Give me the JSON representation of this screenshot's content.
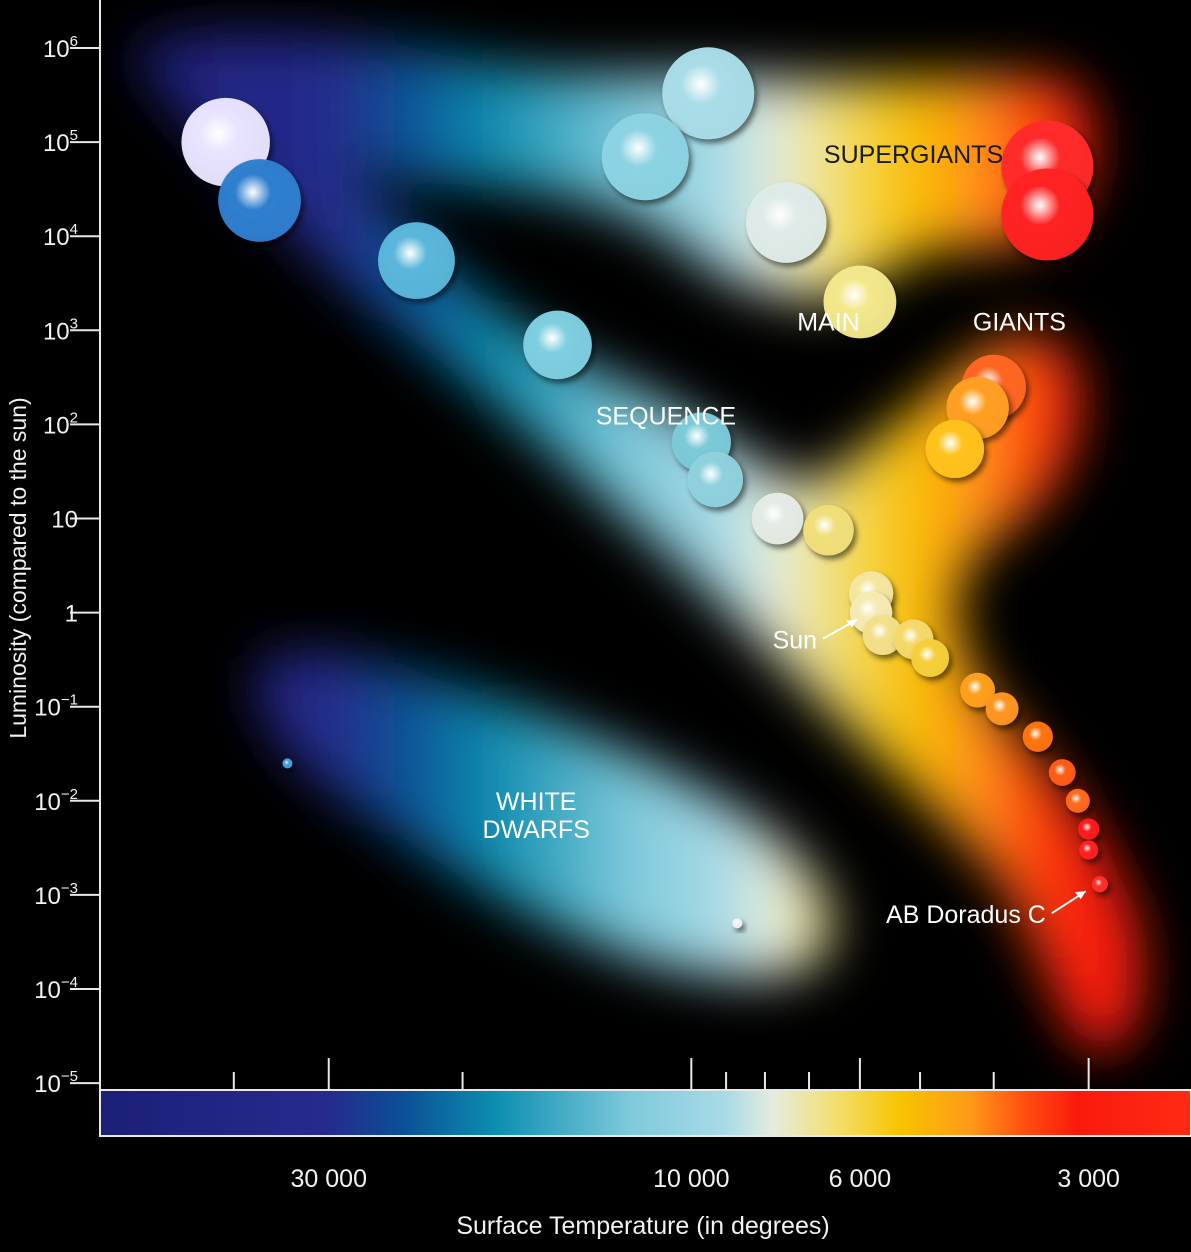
{
  "chart_data": {
    "type": "scatter",
    "title": "",
    "xlabel": "Surface Temperature (in degrees)",
    "ylabel": "Luminosity (compared to the sun)",
    "x_scale": "log, reversed",
    "y_scale": "log",
    "xlim": [
      60000,
      2200
    ],
    "ylim": [
      1e-05,
      1000000
    ],
    "grid": false,
    "legend": "none",
    "x_ticks": [
      {
        "value": 30000,
        "label": "30 000"
      },
      {
        "value": 10000,
        "label": "10 000"
      },
      {
        "value": 6000,
        "label": "6 000"
      },
      {
        "value": 3000,
        "label": "3 000"
      }
    ],
    "x_minor_ticks": [
      40000,
      20000,
      9000,
      8000,
      7000,
      5000,
      4000
    ],
    "y_ticks": [
      {
        "value": 1000000,
        "base": "10",
        "exp": "6"
      },
      {
        "value": 100000,
        "base": "10",
        "exp": "5"
      },
      {
        "value": 10000,
        "base": "10",
        "exp": "4"
      },
      {
        "value": 1000,
        "base": "10",
        "exp": "3"
      },
      {
        "value": 100,
        "base": "10",
        "exp": "2"
      },
      {
        "value": 10,
        "base": "10",
        "exp": ""
      },
      {
        "value": 1,
        "base": "1",
        "exp": ""
      },
      {
        "value": 0.1,
        "base": "10",
        "exp": "−1"
      },
      {
        "value": 0.01,
        "base": "10",
        "exp": "−2"
      },
      {
        "value": 0.001,
        "base": "10",
        "exp": "−3"
      },
      {
        "value": 0.0001,
        "base": "10",
        "exp": "−4"
      },
      {
        "value": 1e-05,
        "base": "10",
        "exp": "−5"
      }
    ],
    "colorbar": {
      "stops": [
        {
          "t": 60000,
          "color": "#1c1f78"
        },
        {
          "t": 30000,
          "color": "#262a8c"
        },
        {
          "t": 24000,
          "color": "#0b4f95"
        },
        {
          "t": 18000,
          "color": "#0d8fb0"
        },
        {
          "t": 12000,
          "color": "#7fcadb"
        },
        {
          "t": 9000,
          "color": "#a9dbe6"
        },
        {
          "t": 7800,
          "color": "#e6ecdf"
        },
        {
          "t": 6500,
          "color": "#f2e070"
        },
        {
          "t": 5300,
          "color": "#f7c400"
        },
        {
          "t": 4300,
          "color": "#ff9a18"
        },
        {
          "t": 3600,
          "color": "#ff4a10"
        },
        {
          "t": 3100,
          "color": "#fa1a0c"
        },
        {
          "t": 2200,
          "color": "#ff2a14"
        }
      ]
    },
    "regions": [
      {
        "name": "MAIN",
        "label_t": 6600,
        "label_l": 1000
      },
      {
        "name": "SEQUENCE",
        "label_t": 10800,
        "label_l": 100
      },
      {
        "name": "SUPERGIANTS",
        "label_t": 5100,
        "label_l": 60000
      },
      {
        "name": "GIANTS",
        "label_t": 3700,
        "label_l": 1000
      },
      {
        "name": "WHITE",
        "label_t": 16000,
        "label_l": 0.008
      },
      {
        "name": "DWARFS",
        "label_t": 16000,
        "label_l": 0.004
      }
    ],
    "annotations": [
      {
        "text": "Sun",
        "t": 5800,
        "l": 1
      },
      {
        "text": "AB Doradus C",
        "t": 2900,
        "l": 0.0013
      }
    ],
    "series": [
      {
        "group": "main-sequence",
        "points": [
          {
            "t": 41000,
            "l": 100000,
            "color": "#e8e4ff"
          },
          {
            "t": 37000,
            "l": 24000,
            "color": "#2f7fcf"
          },
          {
            "t": 23000,
            "l": 5500,
            "color": "#5ab7db"
          },
          {
            "t": 15000,
            "l": 700,
            "color": "#7fcfe0"
          },
          {
            "t": 9700,
            "l": 65,
            "color": "#7ccad8"
          },
          {
            "t": 9300,
            "l": 26,
            "color": "#8fd1dd"
          },
          {
            "t": 7700,
            "l": 10,
            "color": "#e4ebe4"
          },
          {
            "t": 6600,
            "l": 7.5,
            "color": "#f0df7a"
          },
          {
            "t": 5800,
            "l": 1.6,
            "color": "#f5e6a0"
          },
          {
            "t": 5800,
            "l": 1.0,
            "color": "#f6ebb4"
          },
          {
            "t": 5600,
            "l": 0.58,
            "color": "#f3e08a"
          },
          {
            "t": 5100,
            "l": 0.52,
            "color": "#f5d96a"
          },
          {
            "t": 4850,
            "l": 0.33,
            "color": "#f6cf3c"
          },
          {
            "t": 4200,
            "l": 0.15,
            "color": "#ff9f1e"
          },
          {
            "t": 3900,
            "l": 0.095,
            "color": "#ff9522"
          },
          {
            "t": 3500,
            "l": 0.048,
            "color": "#ff7410"
          },
          {
            "t": 3250,
            "l": 0.02,
            "color": "#ff5d18"
          },
          {
            "t": 3100,
            "l": 0.01,
            "color": "#ff6a1c"
          },
          {
            "t": 3000,
            "l": 0.005,
            "color": "#ff1a1a"
          },
          {
            "t": 3000,
            "l": 0.003,
            "color": "#ff2020"
          },
          {
            "t": 2900,
            "l": 0.0013,
            "color": "#ff2e2a"
          }
        ]
      },
      {
        "group": "supergiants",
        "points": [
          {
            "t": 9500,
            "l": 330000,
            "color": "#a9dde8"
          },
          {
            "t": 11500,
            "l": 70000,
            "color": "#8cd3e3"
          },
          {
            "t": 7500,
            "l": 14000,
            "color": "#dfebe8"
          },
          {
            "t": 6000,
            "l": 2000,
            "color": "#f3e88c"
          },
          {
            "t": 3400,
            "l": 55000,
            "color": "#ff2b2b"
          },
          {
            "t": 3400,
            "l": 17000,
            "color": "#ff2121"
          }
        ]
      },
      {
        "group": "giants",
        "points": [
          {
            "t": 4000,
            "l": 250,
            "color": "#ff6622"
          },
          {
            "t": 4200,
            "l": 150,
            "color": "#ff9f22"
          },
          {
            "t": 4500,
            "l": 55,
            "color": "#ffc21a"
          }
        ]
      },
      {
        "group": "white-dwarfs",
        "points": [
          {
            "t": 34000,
            "l": 0.025,
            "color": "#4aa0d8"
          },
          {
            "t": 8700,
            "l": 0.0005,
            "color": "#f0f0f0"
          }
        ]
      }
    ]
  }
}
